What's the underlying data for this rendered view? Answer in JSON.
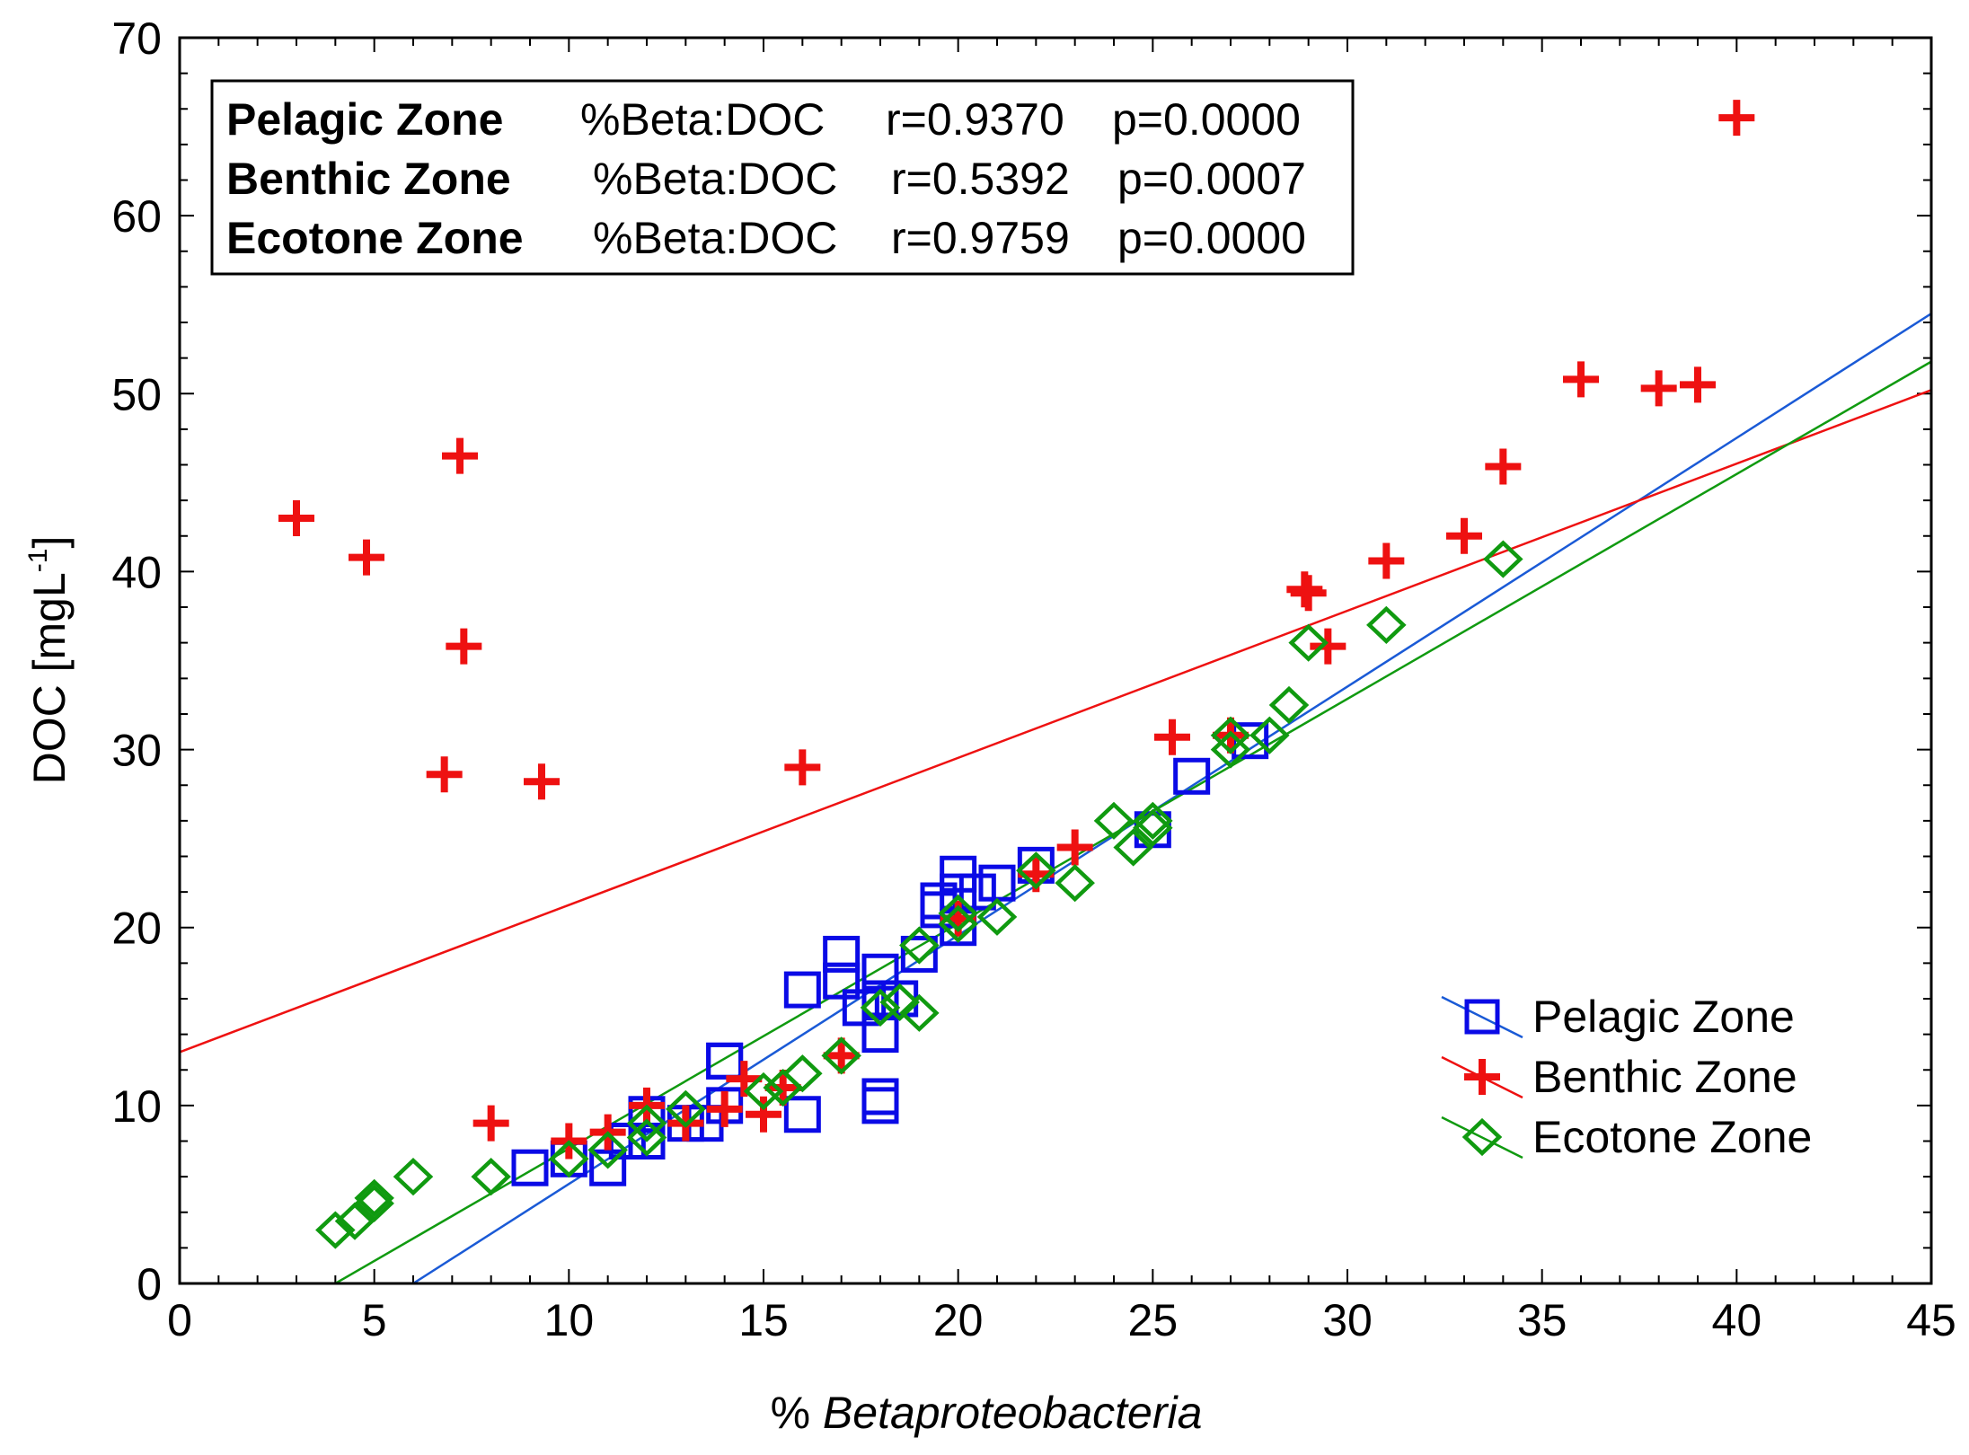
{
  "chart_data": {
    "type": "scatter",
    "xlabel_prefix": "% ",
    "xlabel_italic": "Betaproteobacteria",
    "ylabel_main": "DOC [mgL",
    "ylabel_sup": "-1",
    "ylabel_close": "]",
    "xlim": [
      0,
      45
    ],
    "ylim": [
      0,
      70
    ],
    "xticks": [
      0,
      5,
      10,
      15,
      20,
      25,
      30,
      35,
      40,
      45
    ],
    "yticks": [
      0,
      10,
      20,
      30,
      40,
      50,
      60,
      70
    ],
    "grid": false,
    "stats": [
      {
        "zone": "Pelagic Zone",
        "pair": "%Beta:DOC",
        "r": "r=0.9370",
        "p": "p=0.0000"
      },
      {
        "zone": "Benthic Zone",
        "pair": "%Beta:DOC",
        "r": "r=0.5392",
        "p": "p=0.0007"
      },
      {
        "zone": "Ecotone Zone",
        "pair": "%Beta:DOC",
        "r": "r=0.9759",
        "p": "p=0.0000"
      }
    ],
    "legend_position": "bottom-right",
    "series": [
      {
        "name": "Pelagic Zone",
        "marker": "square",
        "color": "#0a0ae6",
        "line_color": "#1a5ad6",
        "fit": {
          "x": [
            6,
            45
          ],
          "y": [
            0,
            54.5
          ]
        },
        "x": [
          9,
          10,
          11,
          11.5,
          12,
          12,
          13,
          13.5,
          14,
          14,
          14,
          16,
          16,
          17,
          17,
          17.5,
          18,
          18,
          18,
          18,
          18,
          18.5,
          19,
          19.5,
          19.5,
          20,
          20,
          20,
          20.5,
          21,
          22,
          25,
          26,
          27.5
        ],
        "y": [
          6.5,
          7,
          6.5,
          8,
          9.5,
          8,
          9,
          9,
          12.5,
          12.5,
          10,
          9.5,
          16.5,
          18.5,
          17,
          15.5,
          17.5,
          16,
          14,
          10.5,
          10,
          16,
          18.5,
          21.5,
          21,
          23,
          22,
          20,
          22,
          22.5,
          23.5,
          25.5,
          28.5,
          30.5
        ]
      },
      {
        "name": "Benthic Zone",
        "marker": "cross",
        "color": "#ee1111",
        "line_color": "#ee1111",
        "fit": {
          "x": [
            0,
            45
          ],
          "y": [
            13,
            50.2
          ]
        },
        "x": [
          3,
          4.8,
          7.2,
          7.3,
          6.8,
          9.3,
          16,
          8,
          10,
          11,
          12,
          13,
          14,
          14.5,
          15,
          15.5,
          17,
          20,
          22,
          23,
          25.5,
          27,
          28.9,
          29,
          29.5,
          31,
          33,
          34,
          36,
          38,
          39,
          40
        ],
        "y": [
          43,
          40.8,
          46.5,
          35.8,
          28.6,
          28.2,
          29,
          9,
          8,
          8.5,
          10,
          9,
          9.8,
          11.5,
          9.5,
          11,
          12.8,
          20.5,
          23,
          24.5,
          30.7,
          30.8,
          39,
          38.8,
          35.8,
          40.6,
          42,
          45.9,
          50.8,
          50.3,
          50.5,
          65.5
        ]
      },
      {
        "name": "Ecotone Zone",
        "marker": "diamond",
        "color": "#109a10",
        "line_color": "#109a10",
        "fit": {
          "x": [
            4,
            45
          ],
          "y": [
            0,
            51.8
          ]
        },
        "x": [
          4,
          4.5,
          5,
          5,
          6,
          8,
          10,
          11,
          12,
          12,
          13,
          15,
          15.5,
          16,
          17,
          18,
          18.5,
          19,
          19,
          20,
          20,
          21,
          22,
          23,
          24,
          24.5,
          25,
          25,
          27,
          27,
          28,
          28.5,
          29,
          31,
          34
        ],
        "y": [
          3,
          3.5,
          4.5,
          4.8,
          6,
          6,
          7,
          7.5,
          9,
          8.2,
          9.8,
          10.8,
          11,
          11.8,
          12.8,
          15.5,
          15.8,
          15.2,
          19,
          20.2,
          20.8,
          20.6,
          23.2,
          22.5,
          26,
          24.5,
          25.6,
          26,
          30,
          30.8,
          30.8,
          32.5,
          36,
          37,
          40.7
        ]
      }
    ]
  }
}
